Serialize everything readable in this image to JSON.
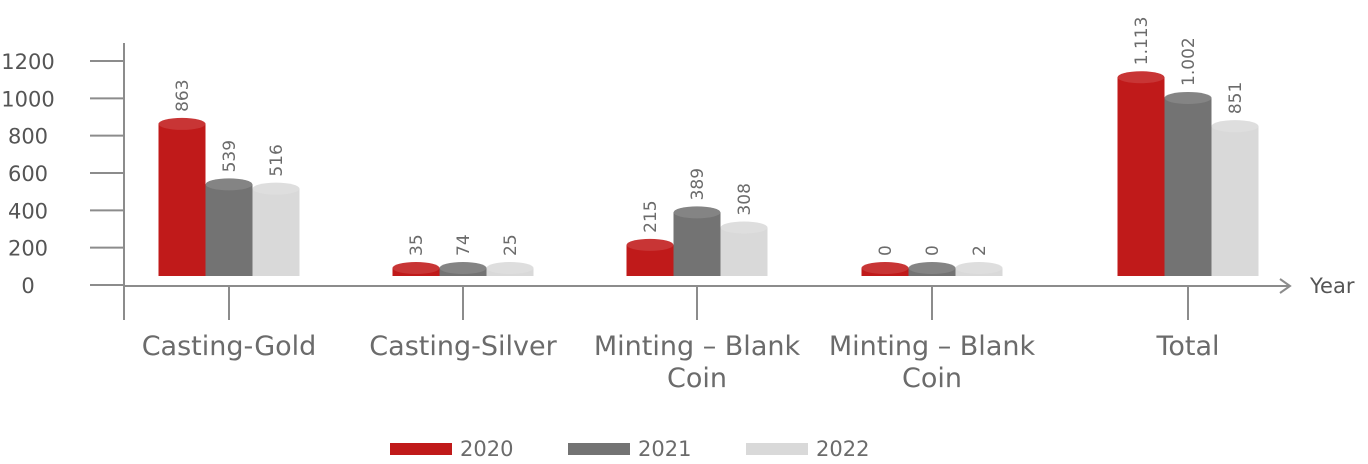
{
  "chart_data": {
    "type": "bar",
    "title": "",
    "xlabel": "Year",
    "ylabel": "",
    "ylim": [
      0,
      1200
    ],
    "yticks": [
      0,
      200,
      400,
      600,
      800,
      1000,
      1200
    ],
    "categories": [
      [
        "Casting-Gold"
      ],
      [
        "Casting-Silver"
      ],
      [
        "Minting – Blank",
        "Coin"
      ],
      [
        "Minting – Blank",
        "Coin"
      ],
      [
        "Total"
      ]
    ],
    "series": [
      {
        "name": "2020",
        "color": "#c01a1a",
        "values": [
          863,
          35,
          215,
          0,
          1113
        ],
        "labels": [
          "863",
          "35",
          "215",
          "0",
          "1.113"
        ]
      },
      {
        "name": "2021",
        "color": "#737373",
        "values": [
          539,
          74,
          389,
          0,
          1002
        ],
        "labels": [
          "539",
          "74",
          "389",
          "0",
          "1.002"
        ]
      },
      {
        "name": "2022",
        "color": "#d9d9d9",
        "values": [
          516,
          25,
          308,
          2,
          851
        ],
        "labels": [
          "516",
          "25",
          "308",
          "2",
          "851"
        ]
      }
    ],
    "legend_position": "bottom-center",
    "grid": false
  }
}
